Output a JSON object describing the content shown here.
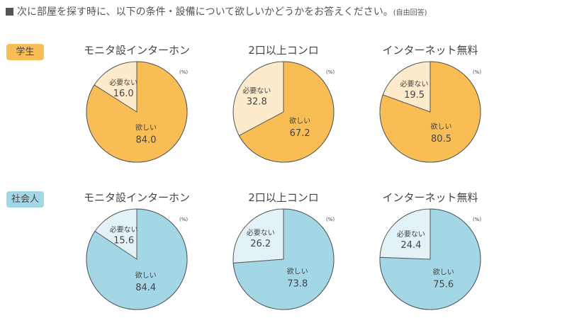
{
  "title": "次に部屋を探す時に、以下の条件・設備について欲しいかどうかをお答えください。",
  "title_note": "(自由回答)",
  "chart_data": [
    {
      "type": "pie",
      "group": "学生",
      "title": "モニタ設インターホン",
      "unit": "(%)",
      "slices": [
        {
          "label": "欲しい",
          "value": 84.0
        },
        {
          "label": "必要ない",
          "value": 16.0
        }
      ]
    },
    {
      "type": "pie",
      "group": "学生",
      "title": "2口以上コンロ",
      "unit": "(%)",
      "slices": [
        {
          "label": "欲しい",
          "value": 67.2
        },
        {
          "label": "必要ない",
          "value": 32.8
        }
      ]
    },
    {
      "type": "pie",
      "group": "学生",
      "title": "インターネット無料",
      "unit": "(%)",
      "slices": [
        {
          "label": "欲しい",
          "value": 80.5
        },
        {
          "label": "必要ない",
          "value": 19.5
        }
      ]
    },
    {
      "type": "pie",
      "group": "社会人",
      "title": "モニタ設インターホン",
      "unit": "(%)",
      "slices": [
        {
          "label": "欲しい",
          "value": 84.4
        },
        {
          "label": "必要ない",
          "value": 15.6
        }
      ]
    },
    {
      "type": "pie",
      "group": "社会人",
      "title": "2口以上コンロ",
      "unit": "(%)",
      "slices": [
        {
          "label": "欲しい",
          "value": 73.8
        },
        {
          "label": "必要ない",
          "value": 26.2
        }
      ]
    },
    {
      "type": "pie",
      "group": "社会人",
      "title": "インターネット無料",
      "unit": "(%)",
      "slices": [
        {
          "label": "欲しい",
          "value": 75.6
        },
        {
          "label": "必要ない",
          "value": 24.4
        }
      ]
    }
  ],
  "groups": [
    {
      "label": "学生",
      "color": "#F8BE55",
      "light": "#FDEBCC"
    },
    {
      "label": "社会人",
      "color": "#A3D7E5",
      "light": "#E3F2F7"
    }
  ]
}
